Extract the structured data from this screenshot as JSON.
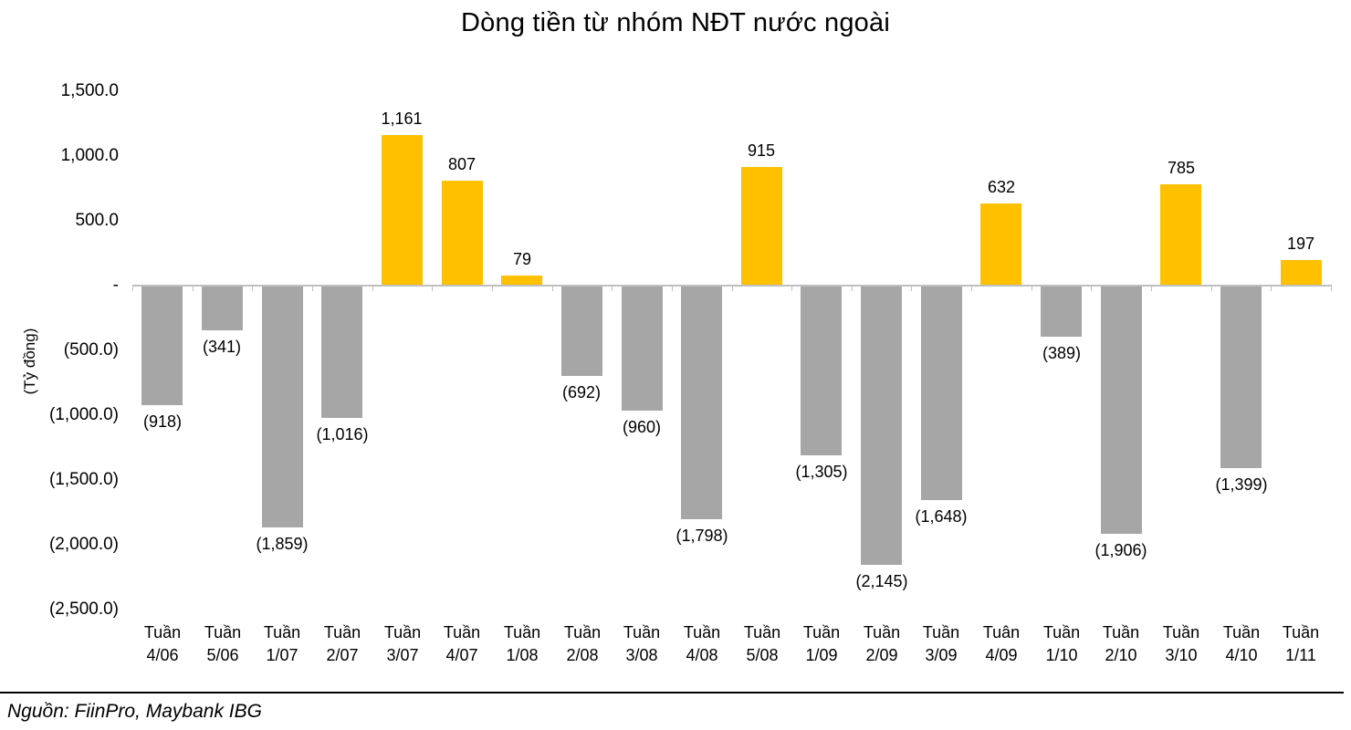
{
  "chart_data": {
    "type": "bar",
    "title": "Dòng tiền từ nhóm NĐT nước ngoài",
    "ylabel": "(Tỷ đồng)",
    "source": "Nguồn: FiinPro, Maybank IBG",
    "categories": [
      [
        "Tuần",
        "4/06"
      ],
      [
        "Tuần",
        "5/06"
      ],
      [
        "Tuần",
        "1/07"
      ],
      [
        "Tuần",
        "2/07"
      ],
      [
        "Tuần",
        "3/07"
      ],
      [
        "Tuần",
        "4/07"
      ],
      [
        "Tuần",
        "1/08"
      ],
      [
        "Tuần",
        "2/08"
      ],
      [
        "Tuần",
        "3/08"
      ],
      [
        "Tuần",
        "4/08"
      ],
      [
        "Tuần",
        "5/08"
      ],
      [
        "Tuần",
        "1/09"
      ],
      [
        "Tuần",
        "2/09"
      ],
      [
        "Tuần",
        "3/09"
      ],
      [
        "Tuân",
        "4/09"
      ],
      [
        "Tuần",
        "1/10"
      ],
      [
        "Tuần",
        "2/10"
      ],
      [
        "Tuần",
        "3/10"
      ],
      [
        "Tuần",
        "4/10"
      ],
      [
        "Tuần",
        "1/11"
      ]
    ],
    "values": [
      -918,
      -341,
      -1859,
      -1016,
      1161,
      807,
      79,
      -692,
      -960,
      -1798,
      915,
      -1305,
      -2145,
      -1648,
      632,
      -389,
      -1906,
      785,
      -1399,
      197
    ],
    "value_labels": [
      "(918)",
      "(341)",
      "(1,859)",
      "(1,016)",
      "1,161",
      "807",
      "79",
      "(692)",
      "(960)",
      "(1,798)",
      "915",
      "(1,305)",
      "(2,145)",
      "(1,648)",
      "632",
      "(389)",
      "(1,906)",
      "785",
      "(1,399)",
      "197"
    ],
    "y_ticks": [
      {
        "value": 1500,
        "label": "1,500.0"
      },
      {
        "value": 1000,
        "label": "1,000.0"
      },
      {
        "value": 500,
        "label": "500.0"
      },
      {
        "value": 0,
        "label": "-"
      },
      {
        "value": -500,
        "label": "(500.0)"
      },
      {
        "value": -1000,
        "label": "(1,000.0)"
      },
      {
        "value": -1500,
        "label": "(1,500.0)"
      },
      {
        "value": -2000,
        "label": "(2,000.0)"
      },
      {
        "value": -2500,
        "label": "(2,500.0)"
      }
    ],
    "ylim": [
      -2500,
      1500
    ],
    "grid": false,
    "legend": false,
    "colors": {
      "positive": "#FFC000",
      "negative": "#A6A6A6",
      "axis": "#BFBFBF",
      "text": "#000000"
    }
  }
}
